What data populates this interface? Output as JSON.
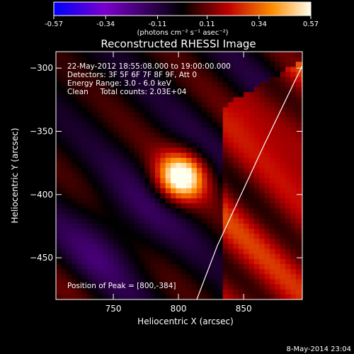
{
  "colorbar": {
    "ticks": [
      "-0.57",
      "-0.34",
      "-0.11",
      "0.11",
      "0.34",
      "0.57"
    ],
    "tick_values": [
      -0.57,
      -0.34,
      -0.11,
      0.11,
      0.34,
      0.57
    ],
    "range": [
      -0.57,
      0.57
    ],
    "unit_label": "(photons cm⁻² s⁻¹ asec⁻²)",
    "colormap": "blue-purple-black-red-orange-yellow-white"
  },
  "chart_data": {
    "type": "heatmap",
    "title": "Reconstructed RHESSI Image",
    "xlabel": "Heliocentric X (arcsec)",
    "ylabel": "Heliocentric Y (arcsec)",
    "xlim": [
      706,
      895
    ],
    "ylim": [
      -483,
      -287
    ],
    "x_ticks": [
      750,
      800,
      850
    ],
    "y_ticks": [
      -300,
      -350,
      -400,
      -450
    ],
    "x_tick_labels": [
      "750",
      "800",
      "850"
    ],
    "y_tick_labels": [
      "−300",
      "−350",
      "−400",
      "−450"
    ],
    "peak": {
      "x": 800,
      "y": -384,
      "value": 0.57
    },
    "limb_curve": {
      "x": [
        814,
        830,
        848,
        866,
        880,
        895
      ],
      "y": [
        -483,
        -440,
        -400,
        -360,
        -330,
        -298
      ]
    },
    "annotations": [
      "22-May-2012 18:55:08.000 to 19:00:00.000",
      "Detectors: 3F 5F 6F 7F 8F 9F, Att 0",
      "Energy Range: 3.0 - 6.0 keV",
      "Clean     Total counts: 2.03E+04"
    ],
    "peak_label": "Position of Peak = [800,-384]"
  },
  "footer": {
    "timestamp": "8-May-2014 23:04"
  }
}
